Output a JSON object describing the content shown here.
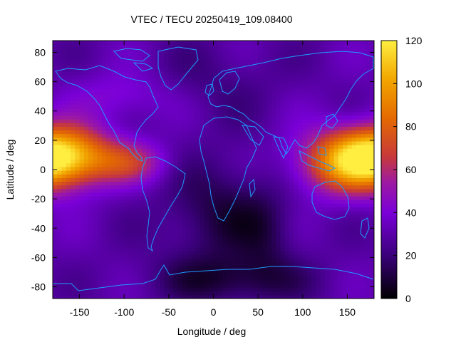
{
  "chart_data": {
    "type": "heatmap",
    "title": "VTEC / TECU 20250419_109.08400",
    "xlabel": "Longitude / deg",
    "ylabel": "Latitude / deg",
    "xlim": [
      -180,
      180
    ],
    "ylim": [
      -88,
      88
    ],
    "clim": [
      0,
      120
    ],
    "x_ticks": [
      {
        "value": -150,
        "label": "-150"
      },
      {
        "value": -100,
        "label": "-100"
      },
      {
        "value": -50,
        "label": "-50"
      },
      {
        "value": 0,
        "label": "0"
      },
      {
        "value": 50,
        "label": "50"
      },
      {
        "value": 100,
        "label": "100"
      },
      {
        "value": 150,
        "label": "150"
      }
    ],
    "y_ticks": [
      {
        "value": 80,
        "label": "80"
      },
      {
        "value": 60,
        "label": "60"
      },
      {
        "value": 40,
        "label": "40"
      },
      {
        "value": 20,
        "label": "20"
      },
      {
        "value": 0,
        "label": "0"
      },
      {
        "value": -20,
        "label": "-20"
      },
      {
        "value": -40,
        "label": "-40"
      },
      {
        "value": -60,
        "label": "-60"
      },
      {
        "value": -80,
        "label": "-80"
      }
    ],
    "colorbar_ticks": [
      {
        "value": 0,
        "label": "0"
      },
      {
        "value": 20,
        "label": "20"
      },
      {
        "value": 40,
        "label": "40"
      },
      {
        "value": 60,
        "label": "60"
      },
      {
        "value": 80,
        "label": "80"
      },
      {
        "value": 100,
        "label": "100"
      },
      {
        "value": 120,
        "label": "120"
      }
    ],
    "colormap": [
      "#000000",
      "#3a007a",
      "#7a00d8",
      "#9d1aa2",
      "#c7393a",
      "#e46a00",
      "#f2a600",
      "#ffee40"
    ],
    "coastline_color": "#1e9bff",
    "grid": false,
    "field_features": [
      {
        "lon": -170,
        "lat": 10,
        "vtec": 112
      },
      {
        "lon": 150,
        "lat": 5,
        "vtec": 100
      },
      {
        "lon": -130,
        "lat": 5,
        "vtec": 85
      },
      {
        "lon": -80,
        "lat": 5,
        "vtec": 62
      },
      {
        "lon": -100,
        "lat": 55,
        "vtec": 44
      },
      {
        "lon": 0,
        "lat": -25,
        "vtec": 6
      },
      {
        "lon": 20,
        "lat": -75,
        "vtec": 5
      },
      {
        "lon": 60,
        "lat": -35,
        "vtec": 10
      }
    ]
  }
}
